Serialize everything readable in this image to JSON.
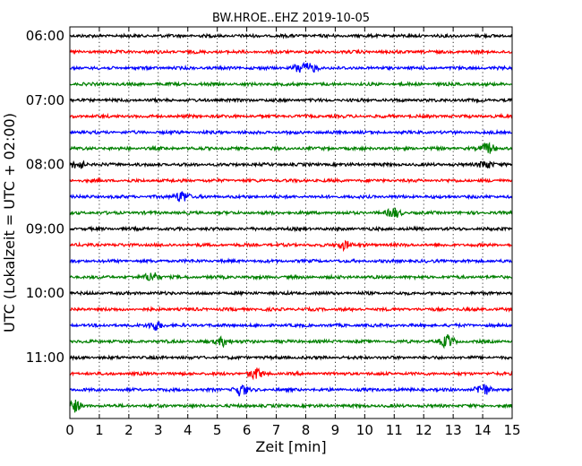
{
  "chart_data": {
    "type": "line",
    "title": "BW.HROE..EHZ 2019-10-05",
    "xlabel": "Zeit  [min]",
    "ylabel": "UTC (Lokalzeit = UTC + 02:00)",
    "xlim": [
      0,
      15
    ],
    "x_ticks": [
      "0",
      "1",
      "2",
      "3",
      "4",
      "5",
      "6",
      "7",
      "8",
      "9",
      "10",
      "11",
      "12",
      "13",
      "14",
      "15"
    ],
    "y_ticks": [
      "06:00",
      "07:00",
      "08:00",
      "09:00",
      "10:00",
      "11:00"
    ],
    "trace_start_times_utc": [
      "06:00",
      "06:15",
      "06:30",
      "06:45",
      "07:00",
      "07:15",
      "07:30",
      "07:45",
      "08:00",
      "08:15",
      "08:30",
      "08:45",
      "09:00",
      "09:15",
      "09:30",
      "09:45",
      "10:00",
      "10:15",
      "10:30",
      "10:45",
      "11:00",
      "11:15",
      "11:30",
      "11:45"
    ],
    "trace_colors": [
      "#000000",
      "#ff0000",
      "#0000ff",
      "#008000"
    ],
    "grid": "vertical dotted at each minute",
    "events": [
      {
        "trace": 2,
        "minute": 7.8,
        "amplitude": 0.55
      },
      {
        "trace": 2,
        "minute": 8.2,
        "amplitude": 0.45
      },
      {
        "trace": 7,
        "minute": 14.2,
        "amplitude": 0.6
      },
      {
        "trace": 8,
        "minute": 0.3,
        "amplitude": 0.5
      },
      {
        "trace": 8,
        "minute": 14.1,
        "amplitude": 0.5
      },
      {
        "trace": 10,
        "minute": 3.8,
        "amplitude": 0.7
      },
      {
        "trace": 11,
        "minute": 11.0,
        "amplitude": 0.55
      },
      {
        "trace": 13,
        "minute": 9.3,
        "amplitude": 0.5
      },
      {
        "trace": 15,
        "minute": 2.8,
        "amplitude": 0.6
      },
      {
        "trace": 18,
        "minute": 2.9,
        "amplitude": 0.55
      },
      {
        "trace": 19,
        "minute": 12.8,
        "amplitude": 0.7
      },
      {
        "trace": 19,
        "minute": 5.2,
        "amplitude": 0.5
      },
      {
        "trace": 21,
        "minute": 6.3,
        "amplitude": 0.6
      },
      {
        "trace": 22,
        "minute": 5.8,
        "amplitude": 0.7
      },
      {
        "trace": 22,
        "minute": 14.0,
        "amplitude": 0.7
      },
      {
        "trace": 23,
        "minute": 0.1,
        "amplitude": 0.8
      }
    ]
  }
}
